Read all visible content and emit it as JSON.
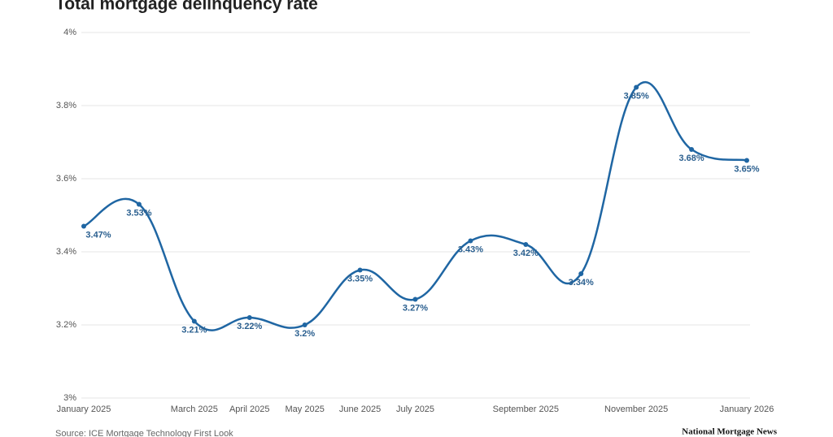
{
  "chart_data": {
    "type": "line",
    "title": "Total mortgage delinquency rate",
    "categories": [
      "January 2025",
      null,
      "March 2025",
      "April 2025",
      "May 2025",
      "June 2025",
      "July 2025",
      null,
      "September 2025",
      null,
      "November 2025",
      null,
      "January 2026"
    ],
    "series": [
      {
        "name": "Total mortgage delinquency rate",
        "color": "#1f66a3",
        "values": [
          3.47,
          3.53,
          3.21,
          3.22,
          3.2,
          3.35,
          3.27,
          3.43,
          3.42,
          3.34,
          3.85,
          3.68,
          3.65
        ],
        "value_labels": [
          "3.47%",
          "3.53%",
          "3.21%",
          "3.22%",
          "3.2%",
          "3.35%",
          "3.27%",
          "3.43%",
          "3.42%",
          "3.34%",
          "3.85%",
          "3.68%",
          "3.65%"
        ]
      }
    ],
    "ylim": [
      3,
      4
    ],
    "yticks": [
      {
        "value": 3,
        "label": "3%"
      },
      {
        "value": 3.2,
        "label": "3.2%"
      },
      {
        "value": 3.4,
        "label": "3.4%"
      },
      {
        "value": 3.6,
        "label": "3.6%"
      },
      {
        "value": 3.8,
        "label": "3.8%"
      },
      {
        "value": 4,
        "label": "4%"
      }
    ],
    "grid": true,
    "source": "Source: ICE Mortgage Technology First Look",
    "logo": "National Mortgage News"
  }
}
